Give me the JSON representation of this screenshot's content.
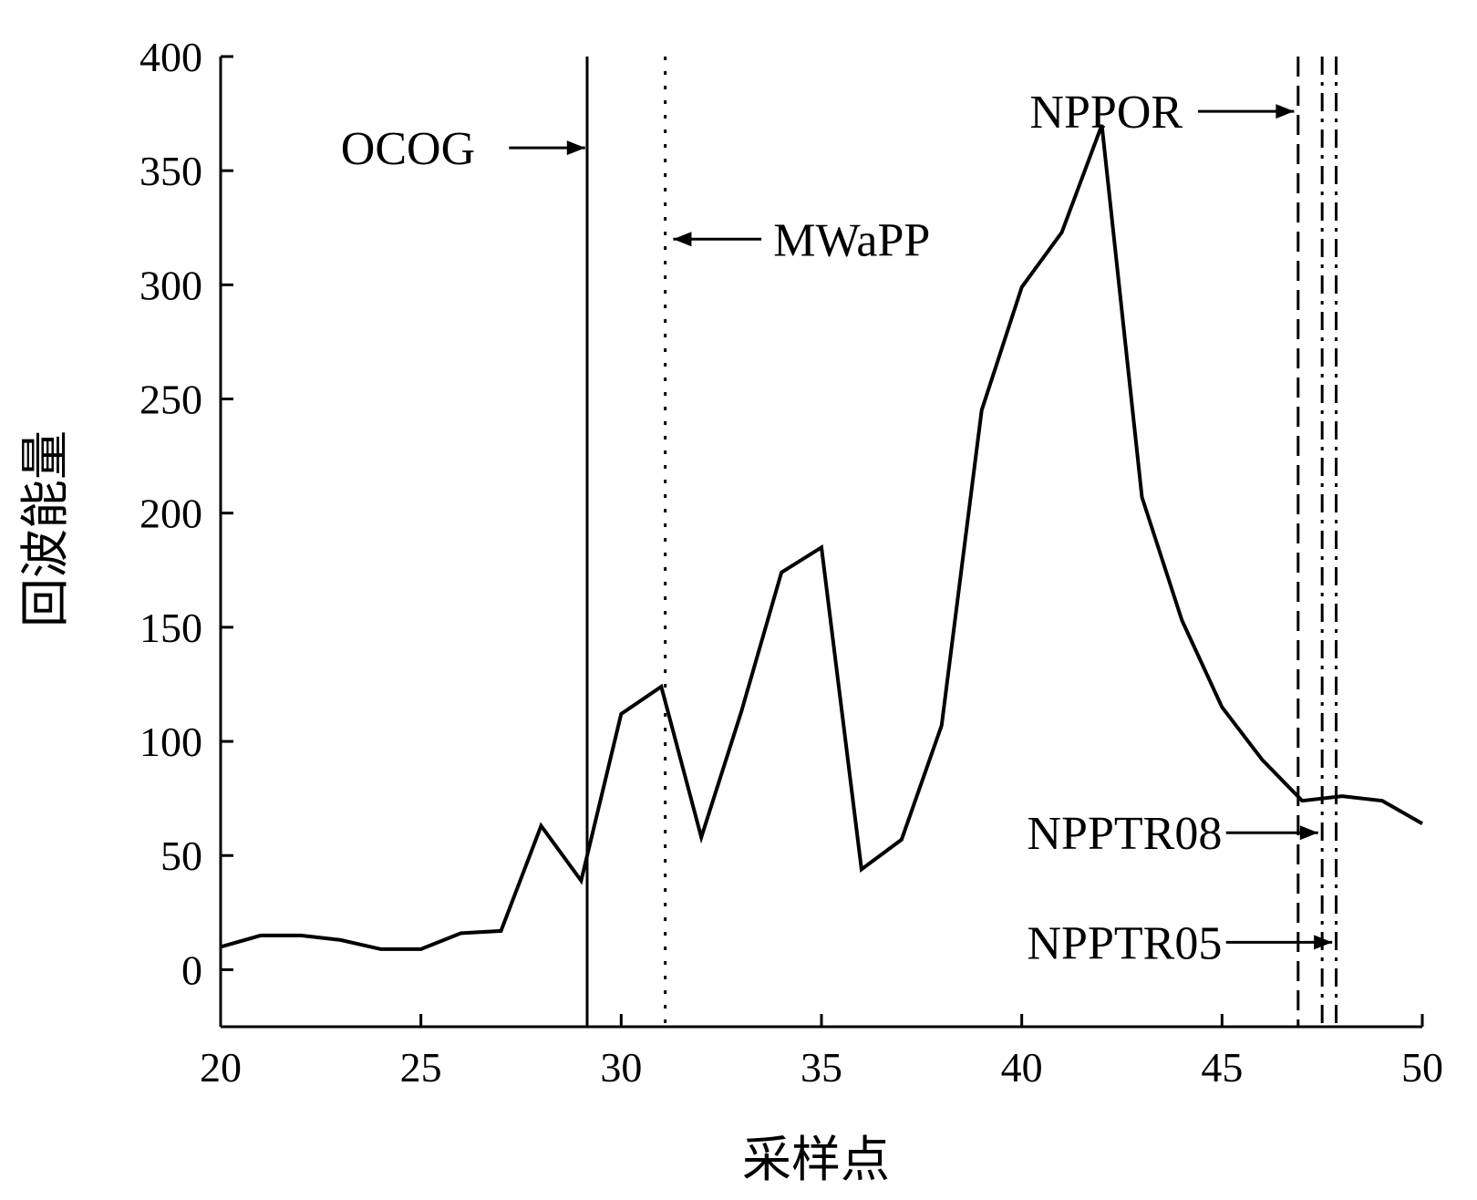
{
  "chart_data": {
    "type": "line",
    "title": "",
    "xlabel": "采样点",
    "ylabel": "回波能量",
    "xlim": [
      20,
      50
    ],
    "ylim": [
      -25,
      400
    ],
    "xticks": [
      20,
      25,
      30,
      35,
      40,
      45,
      50
    ],
    "yticks": [
      0,
      50,
      100,
      150,
      200,
      250,
      300,
      350,
      400
    ],
    "grid": false,
    "series": [
      {
        "x": [
          20,
          21,
          22,
          23,
          24,
          25,
          26,
          27,
          28,
          29,
          30,
          31,
          32,
          33,
          34,
          35,
          36,
          37,
          38,
          39,
          40,
          41,
          42,
          43,
          44,
          45,
          46,
          47,
          48,
          49,
          50
        ],
        "y": [
          10,
          15,
          15,
          13,
          9,
          9,
          16,
          17,
          63,
          39,
          112,
          124,
          58,
          113,
          174,
          185,
          44,
          57,
          107,
          245,
          299,
          323,
          370,
          207,
          153,
          115,
          92,
          74,
          76,
          74,
          64
        ]
      }
    ],
    "annotations": [
      {
        "label": "OCOG",
        "x": 29.15,
        "line_style": "solid",
        "text_at": [
          23.0,
          360
        ],
        "text_anchor": "start",
        "arrow_from": [
          27.2,
          360
        ],
        "arrow_to": [
          29.1,
          360
        ]
      },
      {
        "label": "MWaPP",
        "x": 31.1,
        "line_style": "dotted",
        "text_at": [
          33.8,
          320
        ],
        "text_anchor": "start",
        "arrow_from": [
          33.5,
          320
        ],
        "arrow_to": [
          31.3,
          320
        ]
      },
      {
        "label": "NPPOR",
        "x": 46.9,
        "line_style": "dashed",
        "text_at": [
          40.2,
          376
        ],
        "text_anchor": "start",
        "arrow_from": [
          44.4,
          376
        ],
        "arrow_to": [
          46.8,
          376
        ]
      },
      {
        "label": "NPPTR08",
        "x": 47.5,
        "line_style": "dashdot",
        "text_at": [
          45.0,
          60
        ],
        "text_anchor": "end",
        "arrow_from": [
          45.1,
          60
        ],
        "arrow_to": [
          47.4,
          60
        ]
      },
      {
        "label": "NPPTR05",
        "x": 47.85,
        "line_style": "dashdot",
        "text_at": [
          45.0,
          12
        ],
        "text_anchor": "end",
        "arrow_from": [
          45.1,
          12
        ],
        "arrow_to": [
          47.75,
          12
        ]
      }
    ]
  }
}
